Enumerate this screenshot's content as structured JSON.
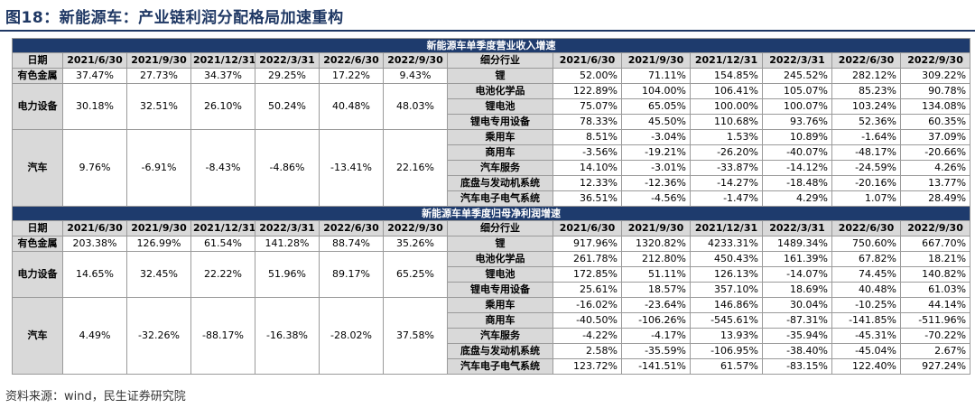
{
  "title": "图18：新能源车：产业链利润分配格局加速重构",
  "source": "资料来源：wind，民生证券研究院",
  "sections": [
    {
      "banner": "新能源车单季度营业收入增速",
      "headers": {
        "left_label": "日期",
        "periods": [
          "2021/6/30",
          "2021/9/30",
          "2021/12/31",
          "2022/3/31",
          "2022/6/30",
          "2022/9/30"
        ],
        "right_label": "细分行业"
      },
      "groups": [
        {
          "industry": "有色金属",
          "values": [
            "37.47%",
            "27.73%",
            "34.37%",
            "29.25%",
            "17.22%",
            "9.43%"
          ],
          "subs": [
            {
              "name": "锂",
              "values": [
                "52.00%",
                "71.11%",
                "154.85%",
                "245.52%",
                "282.12%",
                "309.22%"
              ]
            }
          ]
        },
        {
          "industry": "电力设备",
          "values": [
            "30.18%",
            "32.51%",
            "26.10%",
            "50.24%",
            "40.48%",
            "48.03%"
          ],
          "subs": [
            {
              "name": "电池化学品",
              "values": [
                "122.89%",
                "104.00%",
                "106.41%",
                "105.07%",
                "85.23%",
                "90.78%"
              ]
            },
            {
              "name": "锂电池",
              "values": [
                "75.07%",
                "65.05%",
                "100.00%",
                "100.07%",
                "103.24%",
                "134.08%"
              ]
            },
            {
              "name": "锂电专用设备",
              "values": [
                "78.33%",
                "45.50%",
                "110.68%",
                "93.76%",
                "52.36%",
                "60.35%"
              ]
            }
          ]
        },
        {
          "industry": "汽车",
          "values": [
            "9.76%",
            "-6.91%",
            "-8.43%",
            "-4.86%",
            "-13.41%",
            "22.16%"
          ],
          "subs": [
            {
              "name": "乘用车",
              "values": [
                "8.51%",
                "-3.04%",
                "1.53%",
                "10.89%",
                "-1.64%",
                "37.09%"
              ]
            },
            {
              "name": "商用车",
              "values": [
                "-3.56%",
                "-19.21%",
                "-26.20%",
                "-40.07%",
                "-48.17%",
                "-20.66%"
              ]
            },
            {
              "name": "汽车服务",
              "values": [
                "14.10%",
                "-3.01%",
                "-33.87%",
                "-14.12%",
                "-24.59%",
                "4.26%"
              ]
            },
            {
              "name": "底盘与发动机系统",
              "values": [
                "12.33%",
                "-12.36%",
                "-14.27%",
                "-18.48%",
                "-20.16%",
                "13.77%"
              ]
            },
            {
              "name": "汽车电子电气系统",
              "values": [
                "36.51%",
                "-4.56%",
                "-1.47%",
                "4.29%",
                "1.07%",
                "28.49%"
              ]
            }
          ]
        }
      ]
    },
    {
      "banner": "新能源车单季度归母净利润增速",
      "headers": {
        "left_label": "日期",
        "periods": [
          "2021/6/30",
          "2021/9/30",
          "2021/12/31",
          "2022/3/31",
          "2022/6/30",
          "2022/9/30"
        ],
        "right_label": "细分行业"
      },
      "groups": [
        {
          "industry": "有色金属",
          "values": [
            "203.38%",
            "126.99%",
            "61.54%",
            "141.28%",
            "88.74%",
            "35.26%"
          ],
          "subs": [
            {
              "name": "锂",
              "values": [
                "917.96%",
                "1320.82%",
                "4233.31%",
                "1489.34%",
                "750.60%",
                "667.70%"
              ]
            }
          ]
        },
        {
          "industry": "电力设备",
          "values": [
            "14.65%",
            "32.45%",
            "22.22%",
            "51.96%",
            "89.17%",
            "65.25%"
          ],
          "subs": [
            {
              "name": "电池化学品",
              "values": [
                "261.78%",
                "212.80%",
                "450.43%",
                "161.39%",
                "67.82%",
                "18.21%"
              ]
            },
            {
              "name": "锂电池",
              "values": [
                "172.85%",
                "51.11%",
                "126.13%",
                "-14.07%",
                "74.45%",
                "140.82%"
              ]
            },
            {
              "name": "锂电专用设备",
              "values": [
                "25.61%",
                "18.57%",
                "357.10%",
                "18.69%",
                "40.48%",
                "61.03%"
              ]
            }
          ]
        },
        {
          "industry": "汽车",
          "values": [
            "4.49%",
            "-32.26%",
            "-88.17%",
            "-16.38%",
            "-28.02%",
            "37.58%"
          ],
          "subs": [
            {
              "name": "乘用车",
              "values": [
                "-16.02%",
                "-23.64%",
                "146.86%",
                "30.04%",
                "-10.25%",
                "44.14%"
              ]
            },
            {
              "name": "商用车",
              "values": [
                "-40.50%",
                "-106.26%",
                "-545.61%",
                "-87.31%",
                "-141.85%",
                "-511.96%"
              ]
            },
            {
              "name": "汽车服务",
              "values": [
                "-4.22%",
                "-4.17%",
                "13.93%",
                "-35.94%",
                "-45.31%",
                "-70.22%"
              ]
            },
            {
              "name": "底盘与发动机系统",
              "values": [
                "2.58%",
                "-35.59%",
                "-106.95%",
                "-38.40%",
                "-45.04%",
                "2.67%"
              ]
            },
            {
              "name": "汽车电子电气系统",
              "values": [
                "123.72%",
                "-141.51%",
                "61.57%",
                "-83.15%",
                "122.40%",
                "927.24%"
              ]
            }
          ]
        }
      ]
    }
  ]
}
